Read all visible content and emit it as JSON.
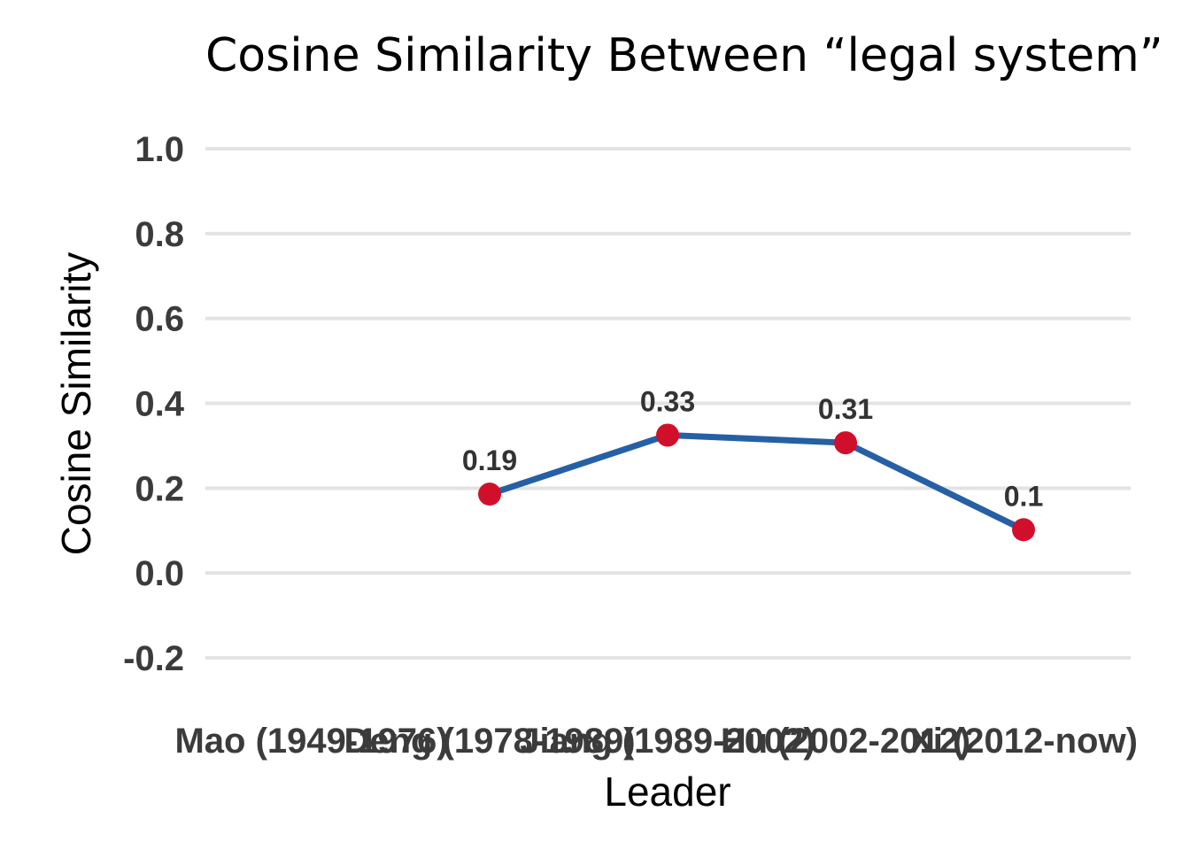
{
  "chart_data": {
    "type": "line",
    "title": "Cosine Similarity Between “legal system”",
    "xlabel": "Leader",
    "ylabel": "Cosine Similarity",
    "categories": [
      "Mao (1949-1976)",
      "Deng (1978-1989)",
      "Jiang (1989-2002)",
      "Hu (2002-2012)",
      "Xi (2012-now)"
    ],
    "x": [
      "Deng (1978-1989)",
      "Jiang (1989-2002)",
      "Hu (2002-2012)",
      "Xi (2012-now)"
    ],
    "values": [
      0.186,
      0.325,
      0.307,
      0.102
    ],
    "data_labels": [
      "0.19",
      "0.33",
      "0.31",
      "0.1"
    ],
    "yticks": [
      "1.0",
      "0.8",
      "0.6",
      "0.4",
      "0.2",
      "0.0",
      "-0.2"
    ],
    "ylim": [
      -0.2,
      1.0
    ],
    "grid": true,
    "line_color": "#2660a4",
    "marker_color": "#d0102b"
  }
}
